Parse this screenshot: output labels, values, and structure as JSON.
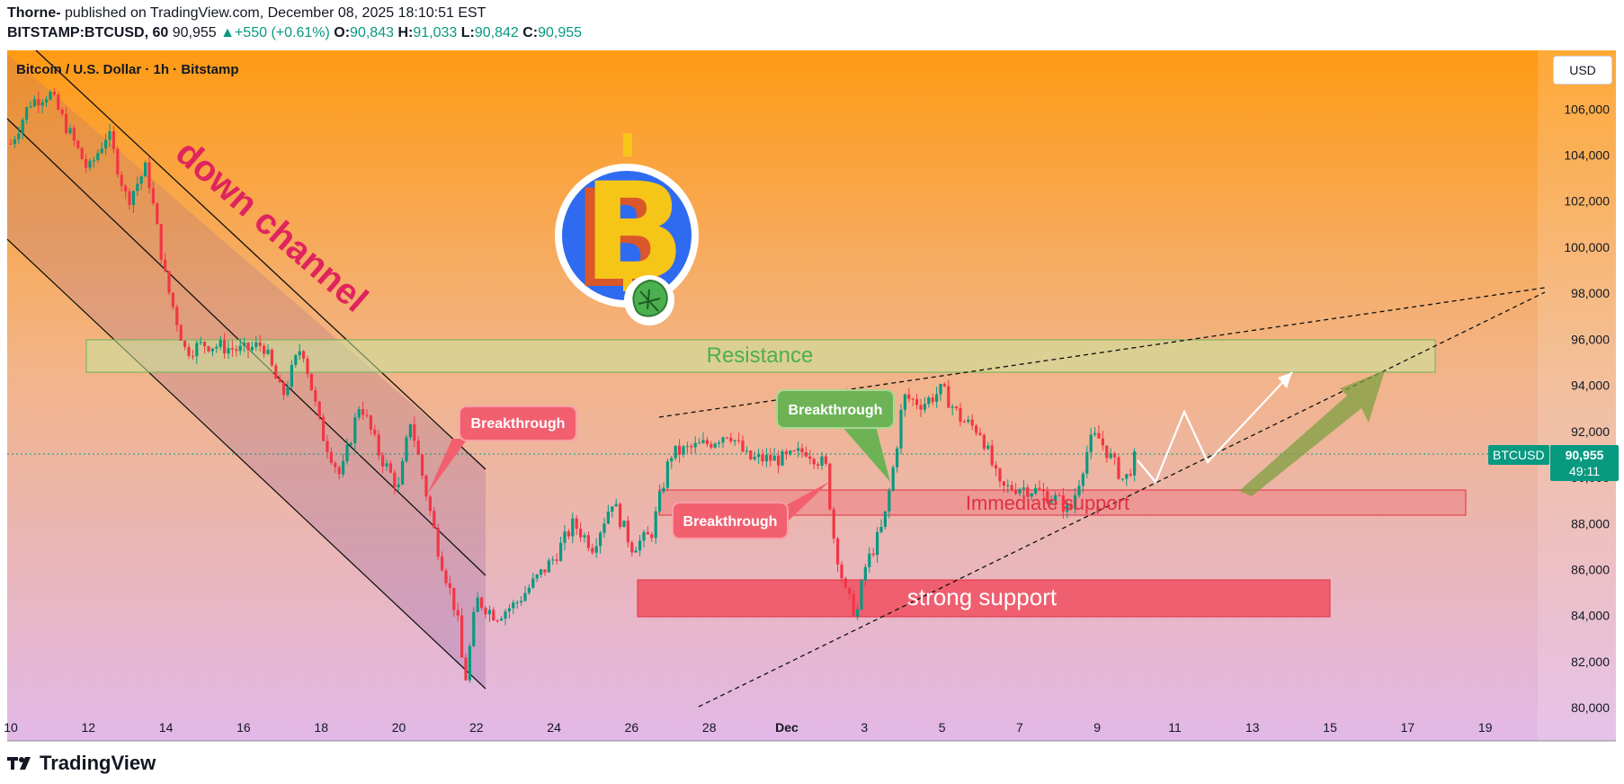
{
  "header": {
    "author": "Thorne-",
    "published_text": " published on TradingView.com, December 08, 2025 18:10:51 EST",
    "symbol": "BITSTAMP:BTCUSD, 60",
    "last": "90,955",
    "change": "+550 (+0.61%)",
    "o_label": "O:",
    "o_val": "90,843",
    "h_label": "H:",
    "h_val": "91,033",
    "l_label": "L:",
    "l_val": "90,842",
    "c_label": "C:",
    "c_val": "90,955"
  },
  "legend_title": "Bitcoin / U.S. Dollar · 1h · Bitstamp",
  "currency_button": "USD",
  "price_tag": {
    "symbol": "BTCUSD",
    "price": "90,955",
    "countdown": "49:11"
  },
  "footer": {
    "brand": "TradingView"
  },
  "annotations": {
    "down_channel": "down channel",
    "resistance": "Resistance",
    "immediate_support": "Immediate support",
    "strong_support": "strong support",
    "breakthrough_1": "Breakthrough",
    "breakthrough_2": "Breakthrough",
    "breakthrough_3": "Breakthrough"
  },
  "colors": {
    "up": "#089981",
    "down": "#f23645",
    "resistance_zone": "#c8e6a0",
    "support_zone": "#f05060",
    "callout_red": "#f26070",
    "callout_green": "#6db356",
    "down_channel_text": "#e0245e"
  },
  "chart_data": {
    "type": "candlestick",
    "title": "Bitcoin / U.S. Dollar · 1h · Bitstamp",
    "x_ticks": [
      "10",
      "12",
      "14",
      "16",
      "18",
      "20",
      "22",
      "24",
      "26",
      "28",
      "Dec",
      "3",
      "5",
      "7",
      "9",
      "11",
      "13",
      "15",
      "17",
      "19"
    ],
    "y_ticks": [
      "106,000",
      "104,000",
      "102,000",
      "100,000",
      "98,000",
      "96,000",
      "94,000",
      "92,000",
      "90,000",
      "88,000",
      "86,000",
      "84,000",
      "82,000",
      "80,000"
    ],
    "ylim": [
      79500,
      107300
    ],
    "last_price": 90955,
    "price_path": [
      {
        "date": "Nov 10",
        "price": 104500
      },
      {
        "date": "Nov 10.5",
        "price": 106300
      },
      {
        "date": "Nov 11",
        "price": 106700
      },
      {
        "date": "Nov 11.5",
        "price": 105000
      },
      {
        "date": "Nov 12",
        "price": 103300
      },
      {
        "date": "Nov 12.5",
        "price": 105000
      },
      {
        "date": "Nov 13",
        "price": 102000
      },
      {
        "date": "Nov 13.5",
        "price": 103500
      },
      {
        "date": "Nov 14",
        "price": 98500
      },
      {
        "date": "Nov 14.5",
        "price": 95500
      },
      {
        "date": "Nov 15",
        "price": 95800
      },
      {
        "date": "Nov 16",
        "price": 95500
      },
      {
        "date": "Nov 16.5",
        "price": 95800
      },
      {
        "date": "Nov 17",
        "price": 93500
      },
      {
        "date": "Nov 17.5",
        "price": 95800
      },
      {
        "date": "Nov 18",
        "price": 92000
      },
      {
        "date": "Nov 18.5",
        "price": 90000
      },
      {
        "date": "Nov 19",
        "price": 93300
      },
      {
        "date": "Nov 19.5",
        "price": 91000
      },
      {
        "date": "Nov 20",
        "price": 89500
      },
      {
        "date": "Nov 20.3",
        "price": 92500
      },
      {
        "date": "Nov 21",
        "price": 87000
      },
      {
        "date": "Nov 21.5",
        "price": 84000
      },
      {
        "date": "Nov 21.7",
        "price": 81000
      },
      {
        "date": "Nov 22",
        "price": 84700
      },
      {
        "date": "Nov 22.5",
        "price": 84000
      },
      {
        "date": "Nov 23",
        "price": 84500
      },
      {
        "date": "Nov 24",
        "price": 86500
      },
      {
        "date": "Nov 24.5",
        "price": 88000
      },
      {
        "date": "Nov 25",
        "price": 87000
      },
      {
        "date": "Nov 25.5",
        "price": 89000
      },
      {
        "date": "Nov 26",
        "price": 87000
      },
      {
        "date": "Nov 26.5",
        "price": 87500
      },
      {
        "date": "Nov 27",
        "price": 91000
      },
      {
        "date": "Nov 28",
        "price": 91500
      },
      {
        "date": "Nov 28.5",
        "price": 92000
      },
      {
        "date": "Nov 29",
        "price": 90800
      },
      {
        "date": "Nov 30",
        "price": 90800
      },
      {
        "date": "Nov 30.5",
        "price": 91200
      },
      {
        "date": "Dec 1",
        "price": 90500
      },
      {
        "date": "Dec 1.2",
        "price": 87500
      },
      {
        "date": "Dec 1.5",
        "price": 85000
      },
      {
        "date": "Dec 1.8",
        "price": 84000
      },
      {
        "date": "Dec 2",
        "price": 86000
      },
      {
        "date": "Dec 2.5",
        "price": 88000
      },
      {
        "date": "Dec 2.8",
        "price": 91000
      },
      {
        "date": "Dec 3",
        "price": 93500
      },
      {
        "date": "Dec 3.5",
        "price": 93200
      },
      {
        "date": "Dec 4",
        "price": 93800
      },
      {
        "date": "Dec 4.5",
        "price": 92500
      },
      {
        "date": "Dec 5",
        "price": 92000
      },
      {
        "date": "Dec 5.5",
        "price": 89500
      },
      {
        "date": "Dec 6",
        "price": 89600
      },
      {
        "date": "Dec 6.5",
        "price": 89400
      },
      {
        "date": "Dec 7",
        "price": 89000
      },
      {
        "date": "Dec 7.3",
        "price": 88500
      },
      {
        "date": "Dec 7.8",
        "price": 91500
      },
      {
        "date": "Dec 8",
        "price": 91800
      },
      {
        "date": "Dec 8.3",
        "price": 91000
      },
      {
        "date": "Dec 8.7",
        "price": 89800
      },
      {
        "date": "Dec 9",
        "price": 90955
      }
    ]
  }
}
